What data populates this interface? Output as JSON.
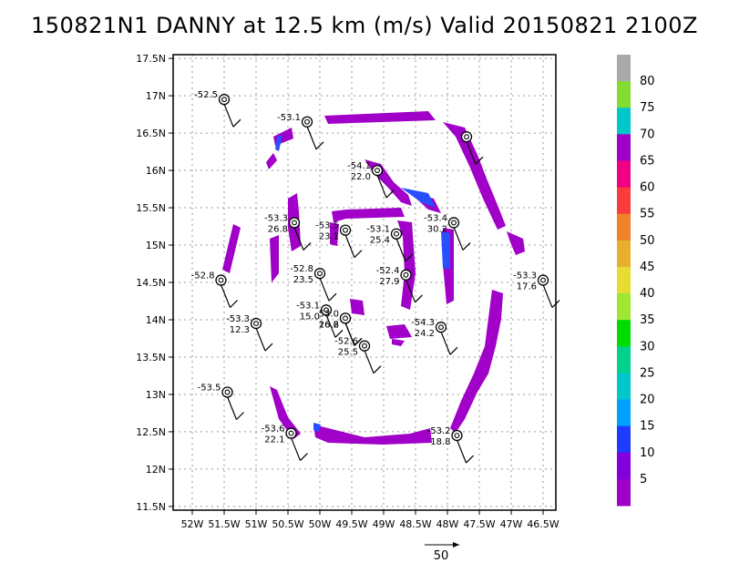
{
  "title": "150821N1 DANNY at 12.5 km (m/s) Valid 20150821 2100Z",
  "chart_data": {
    "type": "heatmap",
    "title": "150821N1 DANNY at 12.5 km (m/s) Valid 20150821 2100Z",
    "x_ticks": [
      {
        "v": -52.0,
        "label": "52W"
      },
      {
        "v": -51.5,
        "label": "51.5W"
      },
      {
        "v": -51.0,
        "label": "51W"
      },
      {
        "v": -50.5,
        "label": "50.5W"
      },
      {
        "v": -50.0,
        "label": "50W"
      },
      {
        "v": -49.5,
        "label": "49.5W"
      },
      {
        "v": -49.0,
        "label": "49W"
      },
      {
        "v": -48.5,
        "label": "48.5W"
      },
      {
        "v": -48.0,
        "label": "48W"
      },
      {
        "v": -47.5,
        "label": "47.5W"
      },
      {
        "v": -47.0,
        "label": "47W"
      },
      {
        "v": -46.5,
        "label": "46.5W"
      }
    ],
    "y_ticks": [
      {
        "v": 11.5,
        "label": "11.5N"
      },
      {
        "v": 12.0,
        "label": "12N"
      },
      {
        "v": 12.5,
        "label": "12.5N"
      },
      {
        "v": 13.0,
        "label": "13N"
      },
      {
        "v": 13.5,
        "label": "13.5N"
      },
      {
        "v": 14.0,
        "label": "14N"
      },
      {
        "v": 14.5,
        "label": "14.5N"
      },
      {
        "v": 15.0,
        "label": "15N"
      },
      {
        "v": 15.5,
        "label": "15.5N"
      },
      {
        "v": 16.0,
        "label": "16N"
      },
      {
        "v": 16.5,
        "label": "16.5N"
      },
      {
        "v": 17.0,
        "label": "17N"
      },
      {
        "v": 17.5,
        "label": "17.5N"
      }
    ],
    "xlim": [
      -52.3,
      -46.3
    ],
    "ylim": [
      11.45,
      17.55
    ],
    "grid": true,
    "colorbar": {
      "labels": [
        "5",
        "10",
        "15",
        "20",
        "25",
        "30",
        "35",
        "40",
        "45",
        "50",
        "55",
        "60",
        "65",
        "70",
        "75",
        "80"
      ],
      "colors": [
        "#a000c8",
        "#8200dc",
        "#1e3cff",
        "#00a0ff",
        "#00c8c8",
        "#00d28c",
        "#00dc00",
        "#a0e632",
        "#e6dc32",
        "#e6af2d",
        "#f08228",
        "#fa3c3c",
        "#f00082",
        "#a000c8",
        "#00c8c8",
        "#82dc32",
        "#aaaaaa"
      ]
    },
    "vector_scale": {
      "label": "50"
    },
    "shading_color": "#a000c8",
    "sondes": [
      {
        "lon": -51.5,
        "lat": 16.95,
        "text1": "-52.5",
        "text2": ""
      },
      {
        "lon": -50.2,
        "lat": 16.65,
        "text1": "-53.1",
        "text2": ""
      },
      {
        "lon": -47.7,
        "lat": 16.45,
        "text1": "",
        "text2": ""
      },
      {
        "lon": -49.1,
        "lat": 16.0,
        "text1": "-54.1",
        "text2": "22.0"
      },
      {
        "lon": -50.4,
        "lat": 15.3,
        "text1": "-53.3",
        "text2": "26.8"
      },
      {
        "lon": -49.6,
        "lat": 15.2,
        "text1": "-53.5",
        "text2": "23.1"
      },
      {
        "lon": -48.8,
        "lat": 15.15,
        "text1": "-53.1",
        "text2": "25.4"
      },
      {
        "lon": -47.9,
        "lat": 15.3,
        "text1": "-53.4",
        "text2": "30.2"
      },
      {
        "lon": -51.55,
        "lat": 14.53,
        "text1": "-52.8",
        "text2": ""
      },
      {
        "lon": -50.0,
        "lat": 14.62,
        "text1": "-52.8",
        "text2": "23.5"
      },
      {
        "lon": -48.65,
        "lat": 14.6,
        "text1": "-52.4",
        "text2": "27.9"
      },
      {
        "lon": -46.5,
        "lat": 14.53,
        "text1": "-53.3",
        "text2": "17.6"
      },
      {
        "lon": -49.9,
        "lat": 14.13,
        "text1": "-53.1",
        "text2": "15.0"
      },
      {
        "lon": -49.6,
        "lat": 14.02,
        "text1": "53.0",
        "text2": "26.2"
      },
      {
        "lon": -49.6,
        "lat": 14.02,
        "text1": "",
        "text2": "16.6"
      },
      {
        "lon": -51.0,
        "lat": 13.95,
        "text1": "-53.3",
        "text2": "12.3"
      },
      {
        "lon": -48.1,
        "lat": 13.9,
        "text1": "-54.3",
        "text2": "24.2"
      },
      {
        "lon": -49.3,
        "lat": 13.65,
        "text1": "-52.6",
        "text2": "25.5"
      },
      {
        "lon": -51.45,
        "lat": 13.03,
        "text1": "-53.5",
        "text2": ""
      },
      {
        "lon": -50.45,
        "lat": 12.48,
        "text1": "-53.6",
        "text2": "22.1"
      },
      {
        "lon": -47.85,
        "lat": 12.45,
        "text1": "-53.2",
        "text2": "18.8"
      }
    ]
  }
}
